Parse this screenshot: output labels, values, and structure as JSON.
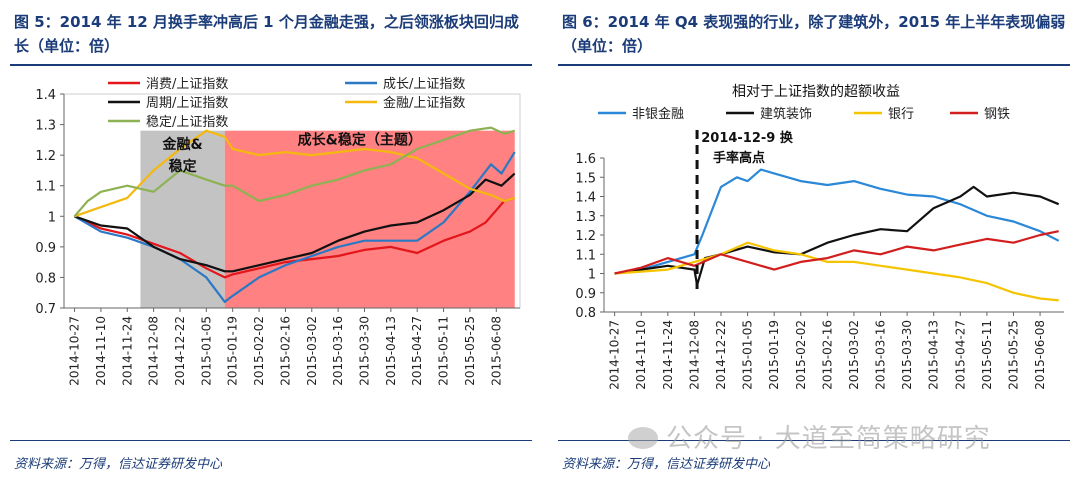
{
  "left": {
    "title": "图 5：2014 年 12 月换手率冲高后 1 个月金融走强，之后领涨板块回归成长（单位：倍）",
    "source": "资料来源：万得，信达证券研发中心"
  },
  "right": {
    "title": "图 6：2014 年 Q4 表现强的行业，除了建筑外，2015 年上半年表现偏弱（单位：倍）",
    "source": "资料来源：万得，信达证券研发中心"
  },
  "watermark": "公众号 · 大道至简策略研究",
  "chart_data": [
    {
      "type": "line",
      "title": "",
      "xlabel": "",
      "ylabel": "",
      "ylim": [
        0.7,
        1.4
      ],
      "yticks": [
        "0.7",
        "0.8",
        "0.9",
        "1",
        "1.1",
        "1.2",
        "1.3",
        "1.4"
      ],
      "xticks": [
        "2014-10-27",
        "2014-11-10",
        "2014-11-24",
        "2014-12-08",
        "2014-12-22",
        "2015-01-05",
        "2015-01-19",
        "2015-02-02",
        "2015-02-16",
        "2015-03-02",
        "2015-03-16",
        "2015-03-30",
        "2015-04-13",
        "2015-04-27",
        "2015-05-11",
        "2015-05-25",
        "2015-06-08"
      ],
      "regions": [
        {
          "label": "金融&\n稳定",
          "from": 3.5,
          "to": 6.7,
          "color": "#b8b8b8"
        },
        {
          "label": "成长&稳定（主题）",
          "from": 6.7,
          "to": 17.7,
          "color": "#ff6b6b"
        }
      ],
      "series": [
        {
          "name": "消费/上证指数",
          "color": "#e3161b",
          "points": [
            [
              1,
              1.0
            ],
            [
              2,
              0.96
            ],
            [
              3,
              0.94
            ],
            [
              4,
              0.91
            ],
            [
              5,
              0.88
            ],
            [
              6,
              0.83
            ],
            [
              6.7,
              0.8
            ],
            [
              7,
              0.81
            ],
            [
              8,
              0.83
            ],
            [
              9,
              0.85
            ],
            [
              10,
              0.86
            ],
            [
              11,
              0.87
            ],
            [
              12,
              0.89
            ],
            [
              13,
              0.9
            ],
            [
              14,
              0.88
            ],
            [
              15,
              0.92
            ],
            [
              16,
              0.95
            ],
            [
              16.6,
              0.98
            ],
            [
              17,
              1.02
            ],
            [
              17.3,
              1.05
            ],
            [
              17.7,
              1.06
            ]
          ]
        },
        {
          "name": "成长/上证指数",
          "color": "#2b78c5",
          "points": [
            [
              1,
              1.0
            ],
            [
              2,
              0.95
            ],
            [
              3,
              0.93
            ],
            [
              4,
              0.9
            ],
            [
              5,
              0.86
            ],
            [
              6,
              0.8
            ],
            [
              6.7,
              0.72
            ],
            [
              7,
              0.74
            ],
            [
              8,
              0.8
            ],
            [
              9,
              0.84
            ],
            [
              10,
              0.87
            ],
            [
              11,
              0.9
            ],
            [
              12,
              0.92
            ],
            [
              13,
              0.92
            ],
            [
              14,
              0.92
            ],
            [
              15,
              0.98
            ],
            [
              16,
              1.08
            ],
            [
              16.8,
              1.17
            ],
            [
              17.2,
              1.14
            ],
            [
              17.7,
              1.21
            ]
          ]
        },
        {
          "name": "周期/上证指数",
          "color": "#111111",
          "points": [
            [
              1,
              1.0
            ],
            [
              2,
              0.97
            ],
            [
              3,
              0.96
            ],
            [
              4,
              0.9
            ],
            [
              5,
              0.86
            ],
            [
              6,
              0.84
            ],
            [
              6.7,
              0.82
            ],
            [
              7,
              0.82
            ],
            [
              8,
              0.84
            ],
            [
              9,
              0.86
            ],
            [
              10,
              0.88
            ],
            [
              11,
              0.92
            ],
            [
              12,
              0.95
            ],
            [
              13,
              0.97
            ],
            [
              14,
              0.98
            ],
            [
              15,
              1.02
            ],
            [
              16,
              1.07
            ],
            [
              16.6,
              1.12
            ],
            [
              17.2,
              1.1
            ],
            [
              17.7,
              1.14
            ]
          ]
        },
        {
          "name": "金融/上证指数",
          "color": "#f5b80f",
          "points": [
            [
              1,
              1.0
            ],
            [
              2,
              1.03
            ],
            [
              3,
              1.06
            ],
            [
              4,
              1.15
            ],
            [
              5,
              1.22
            ],
            [
              6,
              1.28
            ],
            [
              6.7,
              1.26
            ],
            [
              7,
              1.22
            ],
            [
              8,
              1.2
            ],
            [
              9,
              1.21
            ],
            [
              10,
              1.2
            ],
            [
              11,
              1.21
            ],
            [
              12,
              1.22
            ],
            [
              13,
              1.21
            ],
            [
              14,
              1.19
            ],
            [
              15,
              1.14
            ],
            [
              16,
              1.09
            ],
            [
              16.8,
              1.07
            ],
            [
              17.3,
              1.05
            ],
            [
              17.7,
              1.06
            ]
          ]
        },
        {
          "name": "稳定/上证指数",
          "color": "#8db253",
          "points": [
            [
              1,
              1.0
            ],
            [
              1.5,
              1.05
            ],
            [
              2,
              1.08
            ],
            [
              3,
              1.1
            ],
            [
              4,
              1.08
            ],
            [
              5,
              1.15
            ],
            [
              6,
              1.12
            ],
            [
              6.7,
              1.1
            ],
            [
              7,
              1.1
            ],
            [
              8,
              1.05
            ],
            [
              9,
              1.07
            ],
            [
              10,
              1.1
            ],
            [
              11,
              1.12
            ],
            [
              12,
              1.15
            ],
            [
              13,
              1.17
            ],
            [
              14,
              1.22
            ],
            [
              15,
              1.25
            ],
            [
              16,
              1.28
            ],
            [
              16.8,
              1.29
            ],
            [
              17.3,
              1.27
            ],
            [
              17.7,
              1.28
            ]
          ]
        }
      ]
    },
    {
      "type": "line",
      "title": "相对于上证指数的超额收益",
      "xlabel": "",
      "ylabel": "",
      "ylim": [
        0.8,
        1.6
      ],
      "yticks": [
        "0.8",
        "0.9",
        "1",
        "1.1",
        "1.2",
        "1.3",
        "1.4",
        "1.5",
        "1.6"
      ],
      "xticks": [
        "2014-10-27",
        "2014-11-10",
        "2014-11-24",
        "2014-12-08",
        "2014-12-22",
        "2015-01-05",
        "2015-01-19",
        "2015-02-02",
        "2015-02-16",
        "2015-03-02",
        "2015-03-16",
        "2015-03-30",
        "2015-04-13",
        "2015-04-27",
        "2015-05-11",
        "2015-05-25",
        "2015-06-08"
      ],
      "annotation": {
        "text": "2014-12-9 换\n手率高点",
        "x": 4.1
      },
      "series": [
        {
          "name": "非银金融",
          "color": "#2b88d8",
          "points": [
            [
              1,
              1.0
            ],
            [
              2,
              1.02
            ],
            [
              3,
              1.06
            ],
            [
              4,
              1.1
            ],
            [
              4.3,
              1.2
            ],
            [
              5,
              1.45
            ],
            [
              5.6,
              1.5
            ],
            [
              6,
              1.48
            ],
            [
              6.5,
              1.54
            ],
            [
              7,
              1.52
            ],
            [
              8,
              1.48
            ],
            [
              9,
              1.46
            ],
            [
              10,
              1.48
            ],
            [
              11,
              1.44
            ],
            [
              12,
              1.41
            ],
            [
              13,
              1.4
            ],
            [
              14,
              1.36
            ],
            [
              15,
              1.3
            ],
            [
              16,
              1.27
            ],
            [
              17,
              1.22
            ],
            [
              17.7,
              1.17
            ]
          ]
        },
        {
          "name": "建筑装饰",
          "color": "#111111",
          "points": [
            [
              1,
              1.0
            ],
            [
              2,
              1.02
            ],
            [
              3,
              1.04
            ],
            [
              4,
              1.02
            ],
            [
              4.1,
              0.94
            ],
            [
              4.4,
              1.08
            ],
            [
              5,
              1.1
            ],
            [
              6,
              1.14
            ],
            [
              7,
              1.11
            ],
            [
              8,
              1.1
            ],
            [
              9,
              1.16
            ],
            [
              10,
              1.2
            ],
            [
              11,
              1.23
            ],
            [
              12,
              1.22
            ],
            [
              13,
              1.34
            ],
            [
              14,
              1.4
            ],
            [
              14.5,
              1.45
            ],
            [
              15,
              1.4
            ],
            [
              16,
              1.42
            ],
            [
              17,
              1.4
            ],
            [
              17.7,
              1.36
            ]
          ]
        },
        {
          "name": "银行",
          "color": "#f5c400",
          "points": [
            [
              1,
              1.0
            ],
            [
              2,
              1.01
            ],
            [
              3,
              1.02
            ],
            [
              4,
              1.06
            ],
            [
              5,
              1.1
            ],
            [
              6,
              1.16
            ],
            [
              7,
              1.12
            ],
            [
              8,
              1.1
            ],
            [
              9,
              1.06
            ],
            [
              10,
              1.06
            ],
            [
              11,
              1.04
            ],
            [
              12,
              1.02
            ],
            [
              13,
              1.0
            ],
            [
              14,
              0.98
            ],
            [
              15,
              0.95
            ],
            [
              16,
              0.9
            ],
            [
              17,
              0.87
            ],
            [
              17.7,
              0.86
            ]
          ]
        },
        {
          "name": "钢铁",
          "color": "#d31e1e",
          "points": [
            [
              1,
              1.0
            ],
            [
              2,
              1.03
            ],
            [
              3,
              1.08
            ],
            [
              4,
              1.04
            ],
            [
              5,
              1.1
            ],
            [
              6,
              1.06
            ],
            [
              7,
              1.02
            ],
            [
              8,
              1.06
            ],
            [
              9,
              1.08
            ],
            [
              10,
              1.12
            ],
            [
              11,
              1.1
            ],
            [
              12,
              1.14
            ],
            [
              13,
              1.12
            ],
            [
              14,
              1.15
            ],
            [
              15,
              1.18
            ],
            [
              16,
              1.16
            ],
            [
              17,
              1.2
            ],
            [
              17.7,
              1.22
            ]
          ]
        }
      ]
    }
  ]
}
